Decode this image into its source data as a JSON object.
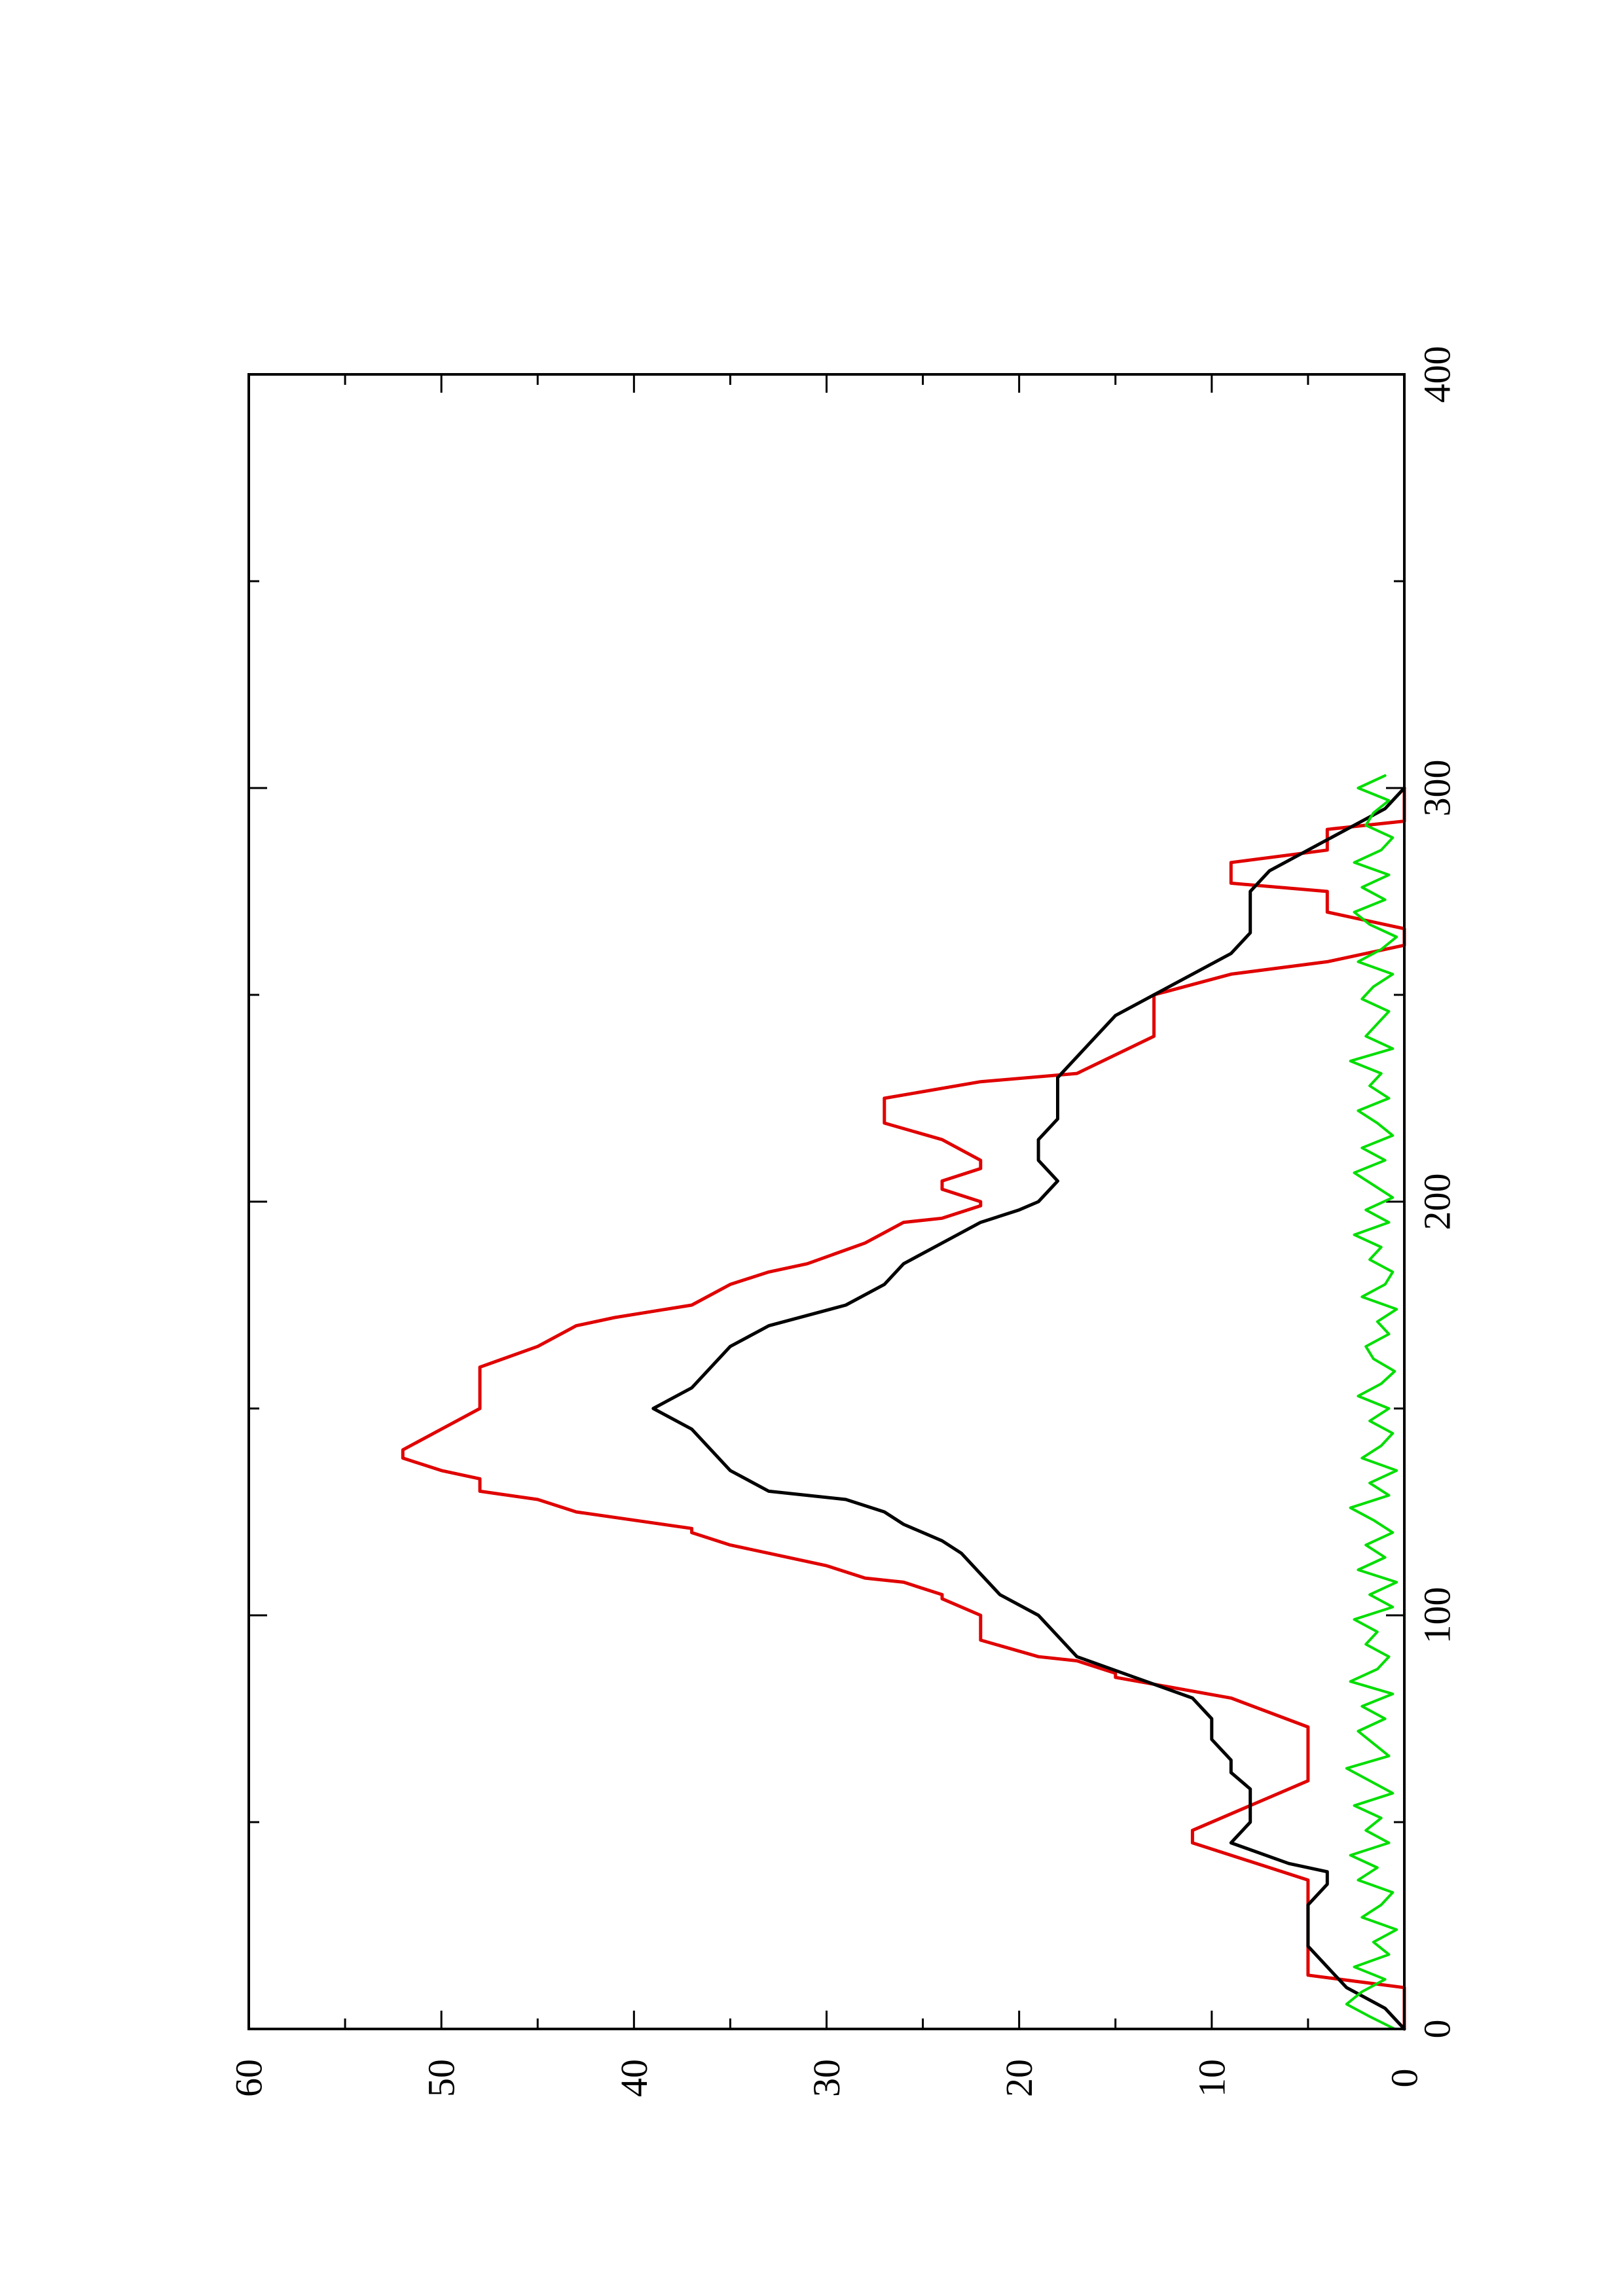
{
  "chart_data": {
    "type": "line",
    "orientation": "rotated-90-ccw",
    "title": "",
    "xlabel": "",
    "ylabel": "",
    "xlim": [
      0,
      400
    ],
    "ylim": [
      0,
      60
    ],
    "x_ticks": [
      0,
      100,
      200,
      300,
      400
    ],
    "y_ticks": [
      0,
      10,
      20,
      30,
      40,
      50,
      60
    ],
    "x_minor_step": 50,
    "y_minor_step": 5,
    "grid": false,
    "legend": "none",
    "series": [
      {
        "color": "#e00000",
        "style": "step",
        "x": [
          0,
          10,
          13,
          14,
          30,
          32,
          36,
          45,
          47,
          48,
          60,
          65,
          72,
          73,
          80,
          85,
          86,
          89,
          90,
          94,
          95,
          100,
          104,
          105,
          108,
          109,
          112,
          115,
          117,
          120,
          121,
          125,
          128,
          130,
          133,
          135,
          138,
          140,
          145,
          150,
          155,
          160,
          165,
          170,
          172,
          175,
          180,
          183,
          185,
          190,
          195,
          196,
          199,
          200,
          203,
          205,
          208,
          210,
          215,
          219,
          225,
          229,
          231,
          240,
          245,
          250,
          255,
          258,
          262,
          266,
          270,
          275,
          277,
          282,
          285,
          290,
          292,
          300
        ],
        "y": [
          0,
          0,
          5,
          5,
          5,
          5,
          5,
          11,
          11,
          11,
          5,
          5,
          5,
          5,
          9,
          15,
          15,
          17,
          19,
          22,
          22,
          22,
          24,
          24,
          26,
          28,
          30,
          33,
          35,
          37,
          37,
          43,
          45,
          48,
          48,
          50,
          52,
          52,
          50,
          48,
          48,
          48,
          45,
          43,
          41,
          37,
          35,
          33,
          31,
          28,
          26,
          24,
          22,
          22,
          24,
          24,
          22,
          22,
          24,
          27,
          27,
          22,
          17,
          13,
          13,
          13,
          9,
          4,
          0,
          0,
          4,
          4,
          9,
          9,
          4,
          4,
          0,
          0
        ]
      },
      {
        "color": "#000000",
        "style": "line",
        "x": [
          0,
          5,
          10,
          15,
          20,
          25,
          30,
          35,
          38,
          40,
          45,
          50,
          55,
          58,
          62,
          65,
          70,
          75,
          80,
          85,
          90,
          95,
          100,
          105,
          110,
          115,
          118,
          120,
          122,
          125,
          128,
          130,
          135,
          140,
          145,
          150,
          155,
          160,
          165,
          170,
          175,
          180,
          185,
          190,
          195,
          198,
          200,
          205,
          210,
          215,
          220,
          225,
          230,
          235,
          240,
          245,
          250,
          255,
          260,
          265,
          270,
          275,
          280,
          285,
          290,
          295,
          300
        ],
        "y": [
          0,
          1,
          3,
          4,
          5,
          5,
          5,
          4,
          4,
          6,
          9,
          8,
          8,
          8,
          9,
          9,
          10,
          10,
          11,
          14,
          17,
          18,
          19,
          21,
          22,
          23,
          24,
          25,
          26,
          27,
          29,
          33,
          35,
          36,
          37,
          39,
          37,
          36,
          35,
          33,
          29,
          27,
          26,
          24,
          22,
          20,
          19,
          18,
          19,
          19,
          18,
          18,
          18,
          17,
          16,
          15,
          13,
          11,
          9,
          8,
          8,
          8,
          7,
          5,
          3,
          1,
          0
        ]
      },
      {
        "color": "#00dd00",
        "style": "noisy",
        "x": [
          0,
          3,
          6,
          9,
          12,
          15,
          18,
          21,
          24,
          27,
          30,
          33,
          36,
          39,
          42,
          45,
          48,
          51,
          54,
          57,
          60,
          63,
          66,
          69,
          72,
          75,
          78,
          81,
          84,
          87,
          90,
          93,
          96,
          99,
          102,
          105,
          108,
          111,
          114,
          117,
          120,
          123,
          126,
          129,
          132,
          135,
          138,
          141,
          144,
          147,
          150,
          153,
          156,
          159,
          162,
          165,
          168,
          171,
          174,
          177,
          180,
          183,
          186,
          189,
          192,
          195,
          198,
          201,
          204,
          207,
          210,
          213,
          216,
          219,
          222,
          225,
          228,
          231,
          234,
          237,
          240,
          243,
          246,
          249,
          252,
          255,
          258,
          261,
          264,
          267,
          270,
          273,
          276,
          279,
          282,
          285,
          288,
          291,
          294,
          297,
          300,
          303
        ],
        "y": [
          0.5,
          1.8,
          3.0,
          2.2,
          1.0,
          2.6,
          0.8,
          1.6,
          0.4,
          2.2,
          1.2,
          0.6,
          2.4,
          1.4,
          2.8,
          0.8,
          2.0,
          1.2,
          2.6,
          0.6,
          1.8,
          3.0,
          0.8,
          1.6,
          2.4,
          1.0,
          2.2,
          0.6,
          2.8,
          1.4,
          0.8,
          2.0,
          1.4,
          2.6,
          0.6,
          1.8,
          0.4,
          2.4,
          1.0,
          2.0,
          0.6,
          1.6,
          2.8,
          0.8,
          1.8,
          0.4,
          2.2,
          1.2,
          0.6,
          1.8,
          0.8,
          2.4,
          1.2,
          0.5,
          1.6,
          2.0,
          0.8,
          1.4,
          0.4,
          2.2,
          1.0,
          0.6,
          1.8,
          1.2,
          2.6,
          0.8,
          2.0,
          0.6,
          1.6,
          2.6,
          1.0,
          2.2,
          0.6,
          1.4,
          2.4,
          0.8,
          1.8,
          1.2,
          2.8,
          0.6,
          2.0,
          1.4,
          0.8,
          2.2,
          1.6,
          0.6,
          2.4,
          1.2,
          0.4,
          1.8,
          2.6,
          1.0,
          2.2,
          0.8,
          2.6,
          1.2,
          0.6,
          2.0,
          1.6,
          0.8,
          2.4,
          1.0
        ]
      }
    ]
  }
}
